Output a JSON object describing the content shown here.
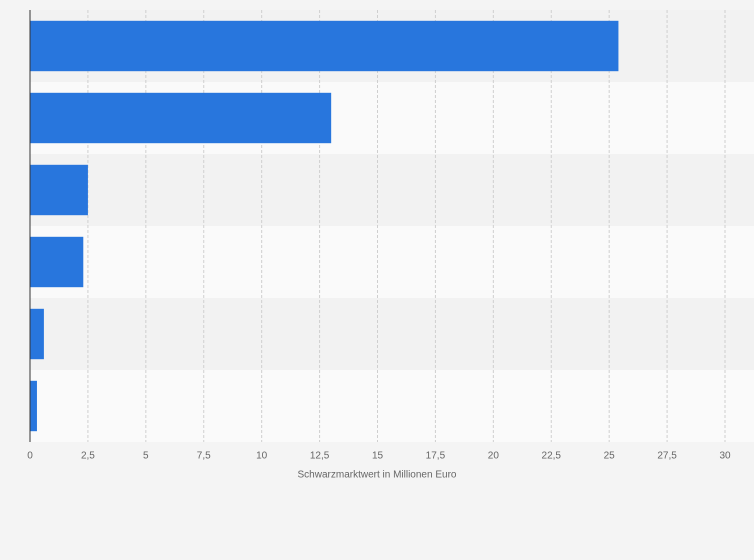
{
  "chart_data": {
    "type": "bar",
    "orientation": "horizontal",
    "categories": [
      null,
      null,
      null,
      null,
      null,
      null
    ],
    "values": [
      25.4,
      13,
      2.5,
      2.3,
      0.6,
      0.3
    ],
    "color": "#2876dd",
    "x_label": "Schwarzmarktwert in Millionen Euro",
    "xlim": [
      0,
      30
    ],
    "xticks": [
      0,
      {
        "value": 2.5,
        "label": "2,5"
      },
      5,
      {
        "value": 7.5,
        "label": "7,5"
      },
      10,
      {
        "value": 12.5,
        "label": "12,5"
      },
      15,
      {
        "value": 17.5,
        "label": "17,5"
      },
      20,
      {
        "value": 22.5,
        "label": "22,5"
      },
      25,
      {
        "value": 27.5,
        "label": "27,5"
      },
      30
    ],
    "grid": true
  }
}
